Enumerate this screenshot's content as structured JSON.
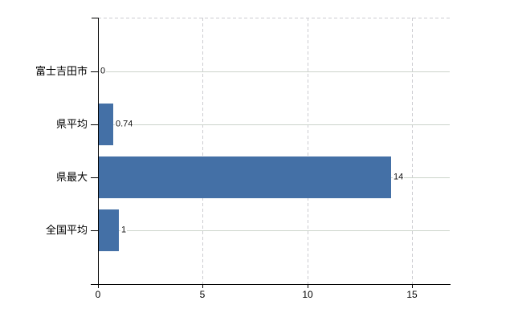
{
  "chart_data": {
    "type": "bar",
    "orientation": "horizontal",
    "categories": [
      "富士吉田市",
      "県平均",
      "県最大",
      "全国平均"
    ],
    "values": [
      0,
      0.74,
      14,
      1
    ],
    "value_labels": [
      "0",
      "0.74",
      "14",
      "1"
    ],
    "x_ticks": [
      0,
      5,
      10,
      15
    ],
    "x_tick_labels": [
      "0",
      "5",
      "10",
      "15"
    ],
    "xlim": [
      0,
      16.8
    ],
    "grid": true,
    "legend": false,
    "title": "",
    "xlabel": "",
    "ylabel": ""
  },
  "colors": {
    "background": "#ffffff",
    "bar": "#4470a6",
    "axis": "#000000",
    "horizontal_gridline": "#ccd4cb",
    "vertical_gridline": "#ccccd1",
    "value_label_text": "#111111",
    "category_label_text": "#000000",
    "tick_label_text": "#000000"
  }
}
